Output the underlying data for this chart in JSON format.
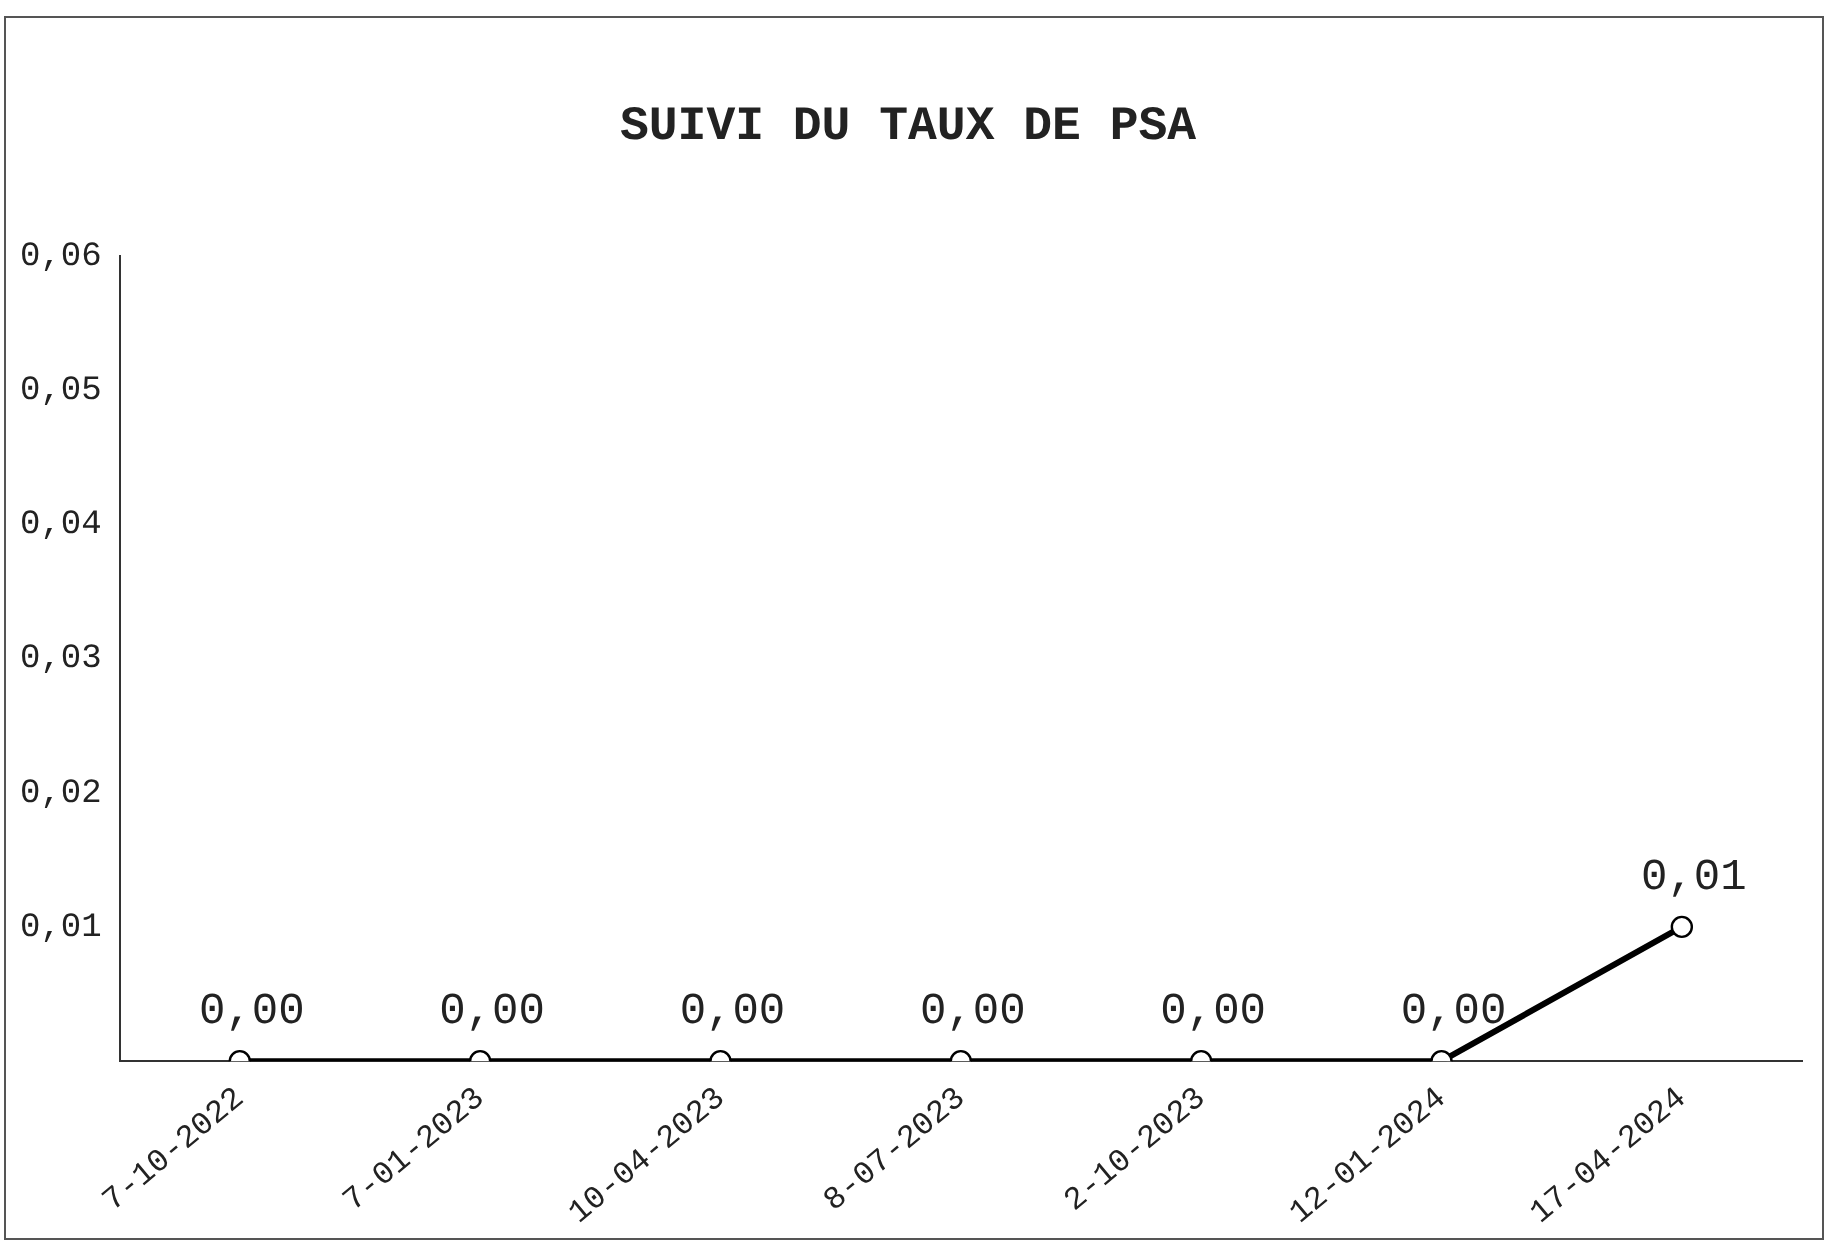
{
  "chart_data": {
    "type": "line",
    "title": "SUIVI DU TAUX DE PSA",
    "categories": [
      "7-10-2022",
      "7-01-2023",
      "10-04-2023",
      "8-07-2023",
      "2-10-2023",
      "12-01-2024",
      "17-04-2024"
    ],
    "series": [
      {
        "color": "#000000",
        "values": [
          0,
          0,
          0,
          0,
          0,
          0,
          0.01
        ],
        "value_labels": [
          "0,00",
          "0,00",
          "0,00",
          "0,00",
          "0,00",
          "0,00",
          "0,01"
        ]
      }
    ],
    "ylim": [
      0,
      0.06
    ],
    "yticks": [
      {
        "value": 0.01,
        "label": "0,01"
      },
      {
        "value": 0.02,
        "label": "0,02"
      },
      {
        "value": 0.03,
        "label": "0,03"
      },
      {
        "value": 0.04,
        "label": "0,04"
      },
      {
        "value": 0.05,
        "label": "0,05"
      },
      {
        "value": 0.06,
        "label": "0,06"
      }
    ],
    "grid": false,
    "legend": false,
    "marker": "circle",
    "line_style": "solid"
  }
}
